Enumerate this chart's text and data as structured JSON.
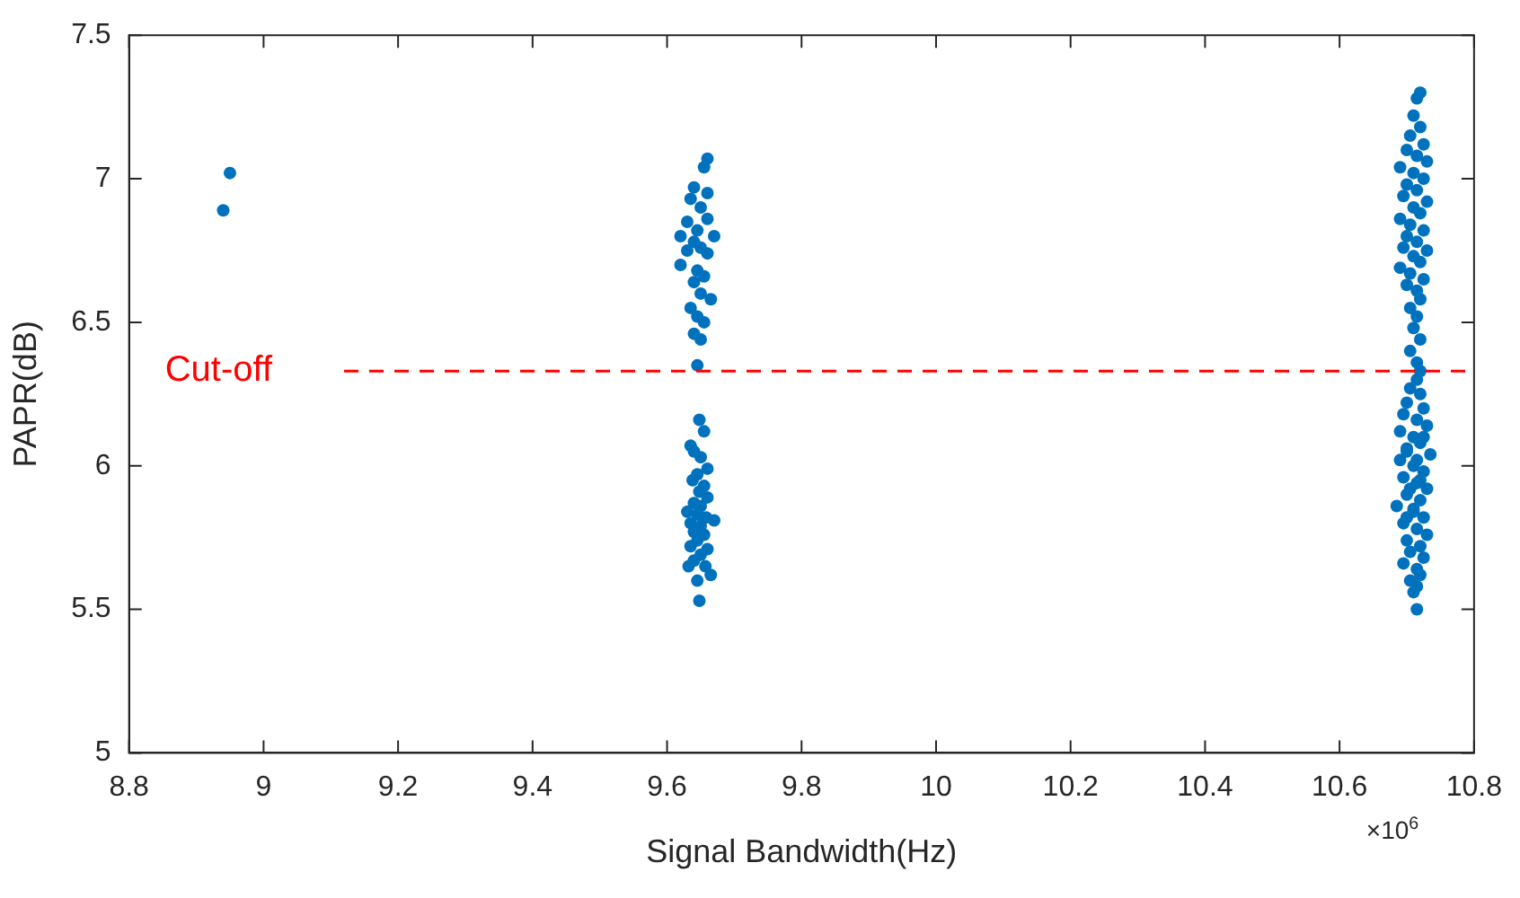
{
  "chart_data": {
    "type": "scatter",
    "xlabel": "Signal Bandwidth(Hz)",
    "ylabel": "PAPR(dB)",
    "annotations": [
      "×10$^{6}$"
    ],
    "xlim": [
      8.8,
      10.8
    ],
    "xticks": [
      8.8,
      9,
      9.2,
      9.4,
      9.6,
      9.8,
      10,
      10.2,
      10.4,
      10.6,
      10.8
    ],
    "ylim": [
      5,
      7.5
    ],
    "yticks": [
      5,
      5.5,
      6,
      6.5,
      7,
      7.5
    ],
    "grid": false,
    "legend": false,
    "marker": "circle",
    "ref_lines": [
      {
        "axis": "y",
        "value": 6.33,
        "label": "Cut-off",
        "color": "#ff0000",
        "line_style": "dashed"
      }
    ],
    "series": [
      {
        "color": "#0072bd",
        "x": [
          8.94,
          8.95,
          9.66,
          9.655,
          9.64,
          9.66,
          9.635,
          9.65,
          9.63,
          9.66,
          9.645,
          9.62,
          9.67,
          9.64,
          9.65,
          9.63,
          9.66,
          9.62,
          9.645,
          9.655,
          9.64,
          9.65,
          9.665,
          9.635,
          9.645,
          9.655,
          9.64,
          9.65,
          9.645,
          9.648,
          9.655,
          9.635,
          9.64,
          9.65,
          9.66,
          9.645,
          9.638,
          9.655,
          9.648,
          9.66,
          9.64,
          9.65,
          9.63,
          9.645,
          9.658,
          9.635,
          9.67,
          9.65,
          9.64,
          9.655,
          9.645,
          9.635,
          9.66,
          9.65,
          9.64,
          9.632,
          9.657,
          9.665,
          9.645,
          9.648,
          10.72,
          10.715,
          10.71,
          10.72,
          10.705,
          10.725,
          10.7,
          10.715,
          10.73,
          10.69,
          10.71,
          10.725,
          10.7,
          10.715,
          10.695,
          10.73,
          10.71,
          10.72,
          10.69,
          10.705,
          10.725,
          10.7,
          10.715,
          10.695,
          10.73,
          10.71,
          10.72,
          10.69,
          10.705,
          10.725,
          10.7,
          10.715,
          10.72,
          10.705,
          10.715,
          10.71,
          10.72,
          10.705,
          10.715,
          10.72,
          10.715,
          10.705,
          10.72,
          10.7,
          10.725,
          10.695,
          10.715,
          10.73,
          10.69,
          10.71,
          10.72,
          10.7,
          10.735,
          10.69,
          10.71,
          10.725,
          10.695,
          10.715,
          10.73,
          10.7,
          10.72,
          10.685,
          10.71,
          10.725,
          10.695,
          10.715,
          10.73,
          10.7,
          10.72,
          10.705,
          10.725,
          10.695,
          10.715,
          10.72,
          10.705,
          10.715,
          10.71,
          10.715,
          10.7,
          10.72,
          10.71,
          10.705,
          10.725,
          10.715,
          10.7
        ],
        "values": [
          6.89,
          7.02,
          7.07,
          7.04,
          6.97,
          6.95,
          6.93,
          6.9,
          6.85,
          6.86,
          6.82,
          6.8,
          6.8,
          6.78,
          6.76,
          6.75,
          6.74,
          6.7,
          6.68,
          6.66,
          6.64,
          6.6,
          6.58,
          6.55,
          6.52,
          6.5,
          6.46,
          6.44,
          6.35,
          6.16,
          6.12,
          6.07,
          6.05,
          6.03,
          5.99,
          5.97,
          5.95,
          5.93,
          5.91,
          5.89,
          5.87,
          5.86,
          5.84,
          5.83,
          5.82,
          5.8,
          5.81,
          5.79,
          5.77,
          5.76,
          5.74,
          5.72,
          5.71,
          5.69,
          5.67,
          5.65,
          5.65,
          5.62,
          5.6,
          5.53,
          7.3,
          7.28,
          7.22,
          7.18,
          7.15,
          7.12,
          7.1,
          7.08,
          7.06,
          7.04,
          7.02,
          7.0,
          6.98,
          6.96,
          6.94,
          6.92,
          6.9,
          6.88,
          6.86,
          6.84,
          6.82,
          6.8,
          6.78,
          6.76,
          6.75,
          6.73,
          6.71,
          6.69,
          6.67,
          6.65,
          6.63,
          6.61,
          6.58,
          6.55,
          6.52,
          6.48,
          6.44,
          6.4,
          6.36,
          6.33,
          6.3,
          6.27,
          6.25,
          6.22,
          6.2,
          6.18,
          6.16,
          6.14,
          6.12,
          6.1,
          6.08,
          6.06,
          6.04,
          6.02,
          6.0,
          5.98,
          5.96,
          5.94,
          5.92,
          5.9,
          5.88,
          5.86,
          5.84,
          5.82,
          5.8,
          5.78,
          5.76,
          5.74,
          5.72,
          5.7,
          5.68,
          5.66,
          5.64,
          5.62,
          5.6,
          5.58,
          5.56,
          5.5,
          6.05,
          5.95,
          5.85,
          5.92,
          6.1,
          6.02,
          5.82
        ]
      }
    ]
  }
}
